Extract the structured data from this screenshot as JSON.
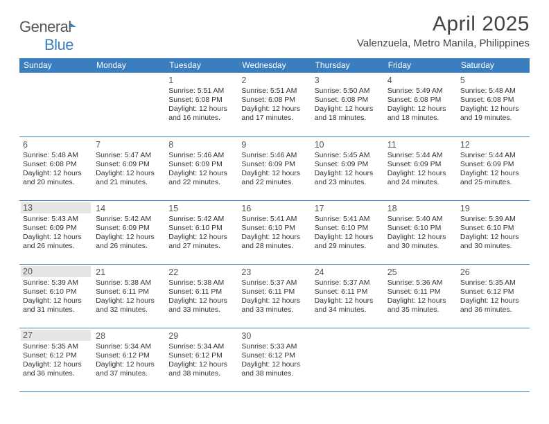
{
  "brand_general": "General",
  "brand_blue": "Blue",
  "title": "April 2025",
  "subtitle": "Valenzuela, Metro Manila, Philippines",
  "colors": {
    "accent": "#3a7ebf",
    "text": "#333333",
    "shade": "#e6e6e6"
  },
  "days_of_week": [
    "Sunday",
    "Monday",
    "Tuesday",
    "Wednesday",
    "Thursday",
    "Friday",
    "Saturday"
  ],
  "weeks": [
    [
      {},
      {},
      {
        "n": "1",
        "sr": "Sunrise: 5:51 AM",
        "ss": "Sunset: 6:08 PM",
        "dl1": "Daylight: 12 hours",
        "dl2": "and 16 minutes."
      },
      {
        "n": "2",
        "sr": "Sunrise: 5:51 AM",
        "ss": "Sunset: 6:08 PM",
        "dl1": "Daylight: 12 hours",
        "dl2": "and 17 minutes."
      },
      {
        "n": "3",
        "sr": "Sunrise: 5:50 AM",
        "ss": "Sunset: 6:08 PM",
        "dl1": "Daylight: 12 hours",
        "dl2": "and 18 minutes."
      },
      {
        "n": "4",
        "sr": "Sunrise: 5:49 AM",
        "ss": "Sunset: 6:08 PM",
        "dl1": "Daylight: 12 hours",
        "dl2": "and 18 minutes."
      },
      {
        "n": "5",
        "sr": "Sunrise: 5:48 AM",
        "ss": "Sunset: 6:08 PM",
        "dl1": "Daylight: 12 hours",
        "dl2": "and 19 minutes."
      }
    ],
    [
      {
        "n": "6",
        "sr": "Sunrise: 5:48 AM",
        "ss": "Sunset: 6:08 PM",
        "dl1": "Daylight: 12 hours",
        "dl2": "and 20 minutes."
      },
      {
        "n": "7",
        "sr": "Sunrise: 5:47 AM",
        "ss": "Sunset: 6:09 PM",
        "dl1": "Daylight: 12 hours",
        "dl2": "and 21 minutes."
      },
      {
        "n": "8",
        "sr": "Sunrise: 5:46 AM",
        "ss": "Sunset: 6:09 PM",
        "dl1": "Daylight: 12 hours",
        "dl2": "and 22 minutes."
      },
      {
        "n": "9",
        "sr": "Sunrise: 5:46 AM",
        "ss": "Sunset: 6:09 PM",
        "dl1": "Daylight: 12 hours",
        "dl2": "and 22 minutes."
      },
      {
        "n": "10",
        "sr": "Sunrise: 5:45 AM",
        "ss": "Sunset: 6:09 PM",
        "dl1": "Daylight: 12 hours",
        "dl2": "and 23 minutes."
      },
      {
        "n": "11",
        "sr": "Sunrise: 5:44 AM",
        "ss": "Sunset: 6:09 PM",
        "dl1": "Daylight: 12 hours",
        "dl2": "and 24 minutes."
      },
      {
        "n": "12",
        "sr": "Sunrise: 5:44 AM",
        "ss": "Sunset: 6:09 PM",
        "dl1": "Daylight: 12 hours",
        "dl2": "and 25 minutes."
      }
    ],
    [
      {
        "n": "13",
        "sr": "Sunrise: 5:43 AM",
        "ss": "Sunset: 6:09 PM",
        "dl1": "Daylight: 12 hours",
        "dl2": "and 26 minutes.",
        "shade": true
      },
      {
        "n": "14",
        "sr": "Sunrise: 5:42 AM",
        "ss": "Sunset: 6:09 PM",
        "dl1": "Daylight: 12 hours",
        "dl2": "and 26 minutes."
      },
      {
        "n": "15",
        "sr": "Sunrise: 5:42 AM",
        "ss": "Sunset: 6:10 PM",
        "dl1": "Daylight: 12 hours",
        "dl2": "and 27 minutes."
      },
      {
        "n": "16",
        "sr": "Sunrise: 5:41 AM",
        "ss": "Sunset: 6:10 PM",
        "dl1": "Daylight: 12 hours",
        "dl2": "and 28 minutes."
      },
      {
        "n": "17",
        "sr": "Sunrise: 5:41 AM",
        "ss": "Sunset: 6:10 PM",
        "dl1": "Daylight: 12 hours",
        "dl2": "and 29 minutes."
      },
      {
        "n": "18",
        "sr": "Sunrise: 5:40 AM",
        "ss": "Sunset: 6:10 PM",
        "dl1": "Daylight: 12 hours",
        "dl2": "and 30 minutes."
      },
      {
        "n": "19",
        "sr": "Sunrise: 5:39 AM",
        "ss": "Sunset: 6:10 PM",
        "dl1": "Daylight: 12 hours",
        "dl2": "and 30 minutes."
      }
    ],
    [
      {
        "n": "20",
        "sr": "Sunrise: 5:39 AM",
        "ss": "Sunset: 6:10 PM",
        "dl1": "Daylight: 12 hours",
        "dl2": "and 31 minutes.",
        "shade": true
      },
      {
        "n": "21",
        "sr": "Sunrise: 5:38 AM",
        "ss": "Sunset: 6:11 PM",
        "dl1": "Daylight: 12 hours",
        "dl2": "and 32 minutes."
      },
      {
        "n": "22",
        "sr": "Sunrise: 5:38 AM",
        "ss": "Sunset: 6:11 PM",
        "dl1": "Daylight: 12 hours",
        "dl2": "and 33 minutes."
      },
      {
        "n": "23",
        "sr": "Sunrise: 5:37 AM",
        "ss": "Sunset: 6:11 PM",
        "dl1": "Daylight: 12 hours",
        "dl2": "and 33 minutes."
      },
      {
        "n": "24",
        "sr": "Sunrise: 5:37 AM",
        "ss": "Sunset: 6:11 PM",
        "dl1": "Daylight: 12 hours",
        "dl2": "and 34 minutes."
      },
      {
        "n": "25",
        "sr": "Sunrise: 5:36 AM",
        "ss": "Sunset: 6:11 PM",
        "dl1": "Daylight: 12 hours",
        "dl2": "and 35 minutes."
      },
      {
        "n": "26",
        "sr": "Sunrise: 5:35 AM",
        "ss": "Sunset: 6:12 PM",
        "dl1": "Daylight: 12 hours",
        "dl2": "and 36 minutes."
      }
    ],
    [
      {
        "n": "27",
        "sr": "Sunrise: 5:35 AM",
        "ss": "Sunset: 6:12 PM",
        "dl1": "Daylight: 12 hours",
        "dl2": "and 36 minutes.",
        "shade": true
      },
      {
        "n": "28",
        "sr": "Sunrise: 5:34 AM",
        "ss": "Sunset: 6:12 PM",
        "dl1": "Daylight: 12 hours",
        "dl2": "and 37 minutes."
      },
      {
        "n": "29",
        "sr": "Sunrise: 5:34 AM",
        "ss": "Sunset: 6:12 PM",
        "dl1": "Daylight: 12 hours",
        "dl2": "and 38 minutes."
      },
      {
        "n": "30",
        "sr": "Sunrise: 5:33 AM",
        "ss": "Sunset: 6:12 PM",
        "dl1": "Daylight: 12 hours",
        "dl2": "and 38 minutes."
      },
      {},
      {},
      {}
    ]
  ]
}
